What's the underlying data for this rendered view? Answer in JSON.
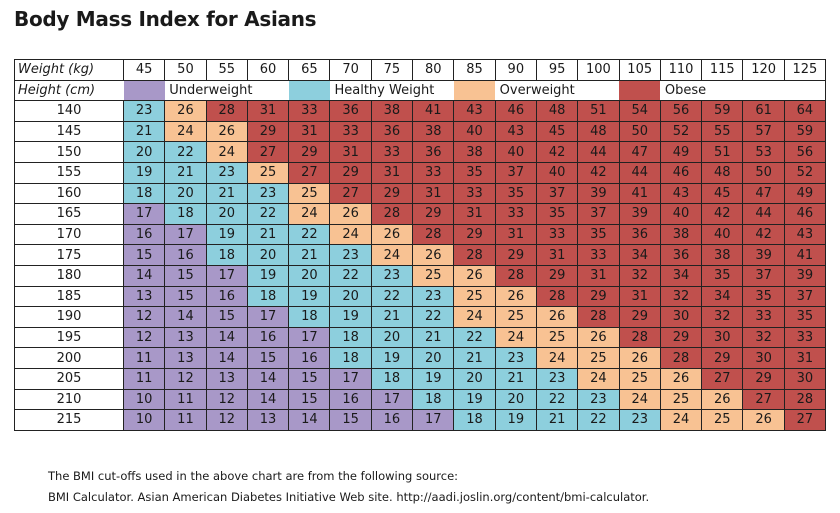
{
  "title": "Body Mass Index for Asians",
  "weight_label": "Weight (kg)",
  "height_label": "Height (cm)",
  "weights": [
    45,
    50,
    55,
    60,
    65,
    70,
    75,
    80,
    85,
    90,
    95,
    100,
    105,
    110,
    115,
    120,
    125
  ],
  "legend": [
    {
      "label": "Underweight",
      "color": "#a898c8",
      "max": 17
    },
    {
      "label": "Healthy Weight",
      "color": "#8dcfdd",
      "max": 23
    },
    {
      "label": "Overweight",
      "color": "#f8c293",
      "max": 26
    },
    {
      "label": "Obese",
      "color": "#c0504d",
      "max": 999
    }
  ],
  "rows": [
    {
      "height": 140,
      "bmi": [
        23,
        26,
        28,
        31,
        33,
        36,
        38,
        41,
        43,
        46,
        48,
        51,
        54,
        56,
        59,
        61,
        64
      ]
    },
    {
      "height": 145,
      "bmi": [
        21,
        24,
        26,
        29,
        31,
        33,
        36,
        38,
        40,
        43,
        45,
        48,
        50,
        52,
        55,
        57,
        59
      ]
    },
    {
      "height": 150,
      "bmi": [
        20,
        22,
        24,
        27,
        29,
        31,
        33,
        36,
        38,
        40,
        42,
        44,
        47,
        49,
        51,
        53,
        56
      ]
    },
    {
      "height": 155,
      "bmi": [
        19,
        21,
        23,
        25,
        27,
        29,
        31,
        33,
        35,
        37,
        40,
        42,
        44,
        46,
        48,
        50,
        52
      ]
    },
    {
      "height": 160,
      "bmi": [
        18,
        20,
        21,
        23,
        25,
        27,
        29,
        31,
        33,
        35,
        37,
        39,
        41,
        43,
        45,
        47,
        49
      ]
    },
    {
      "height": 165,
      "bmi": [
        17,
        18,
        20,
        22,
        24,
        26,
        28,
        29,
        31,
        33,
        35,
        37,
        39,
        40,
        42,
        44,
        46
      ]
    },
    {
      "height": 170,
      "bmi": [
        16,
        17,
        19,
        21,
        22,
        24,
        26,
        28,
        29,
        31,
        33,
        35,
        36,
        38,
        40,
        42,
        43
      ]
    },
    {
      "height": 175,
      "bmi": [
        15,
        16,
        18,
        20,
        21,
        23,
        24,
        26,
        28,
        29,
        31,
        33,
        34,
        36,
        38,
        39,
        41
      ]
    },
    {
      "height": 180,
      "bmi": [
        14,
        15,
        17,
        19,
        20,
        22,
        23,
        25,
        26,
        28,
        29,
        31,
        32,
        34,
        35,
        37,
        39
      ]
    },
    {
      "height": 185,
      "bmi": [
        13,
        15,
        16,
        18,
        19,
        20,
        22,
        23,
        25,
        26,
        28,
        29,
        31,
        32,
        34,
        35,
        37
      ]
    },
    {
      "height": 190,
      "bmi": [
        12,
        14,
        15,
        17,
        18,
        19,
        21,
        22,
        24,
        25,
        26,
        28,
        29,
        30,
        32,
        33,
        35
      ]
    },
    {
      "height": 195,
      "bmi": [
        12,
        13,
        14,
        16,
        17,
        18,
        20,
        21,
        22,
        24,
        25,
        26,
        28,
        29,
        30,
        32,
        33
      ]
    },
    {
      "height": 200,
      "bmi": [
        11,
        13,
        14,
        15,
        16,
        18,
        19,
        20,
        21,
        23,
        24,
        25,
        26,
        28,
        29,
        30,
        31
      ]
    },
    {
      "height": 205,
      "bmi": [
        11,
        12,
        13,
        14,
        15,
        17,
        18,
        19,
        20,
        21,
        23,
        24,
        25,
        26,
        27,
        29,
        30
      ]
    },
    {
      "height": 210,
      "bmi": [
        10,
        11,
        12,
        14,
        15,
        16,
        17,
        18,
        19,
        20,
        22,
        23,
        24,
        25,
        26,
        27,
        28
      ]
    },
    {
      "height": 215,
      "bmi": [
        10,
        11,
        12,
        13,
        14,
        15,
        16,
        17,
        18,
        19,
        21,
        22,
        23,
        24,
        25,
        26,
        27
      ]
    }
  ],
  "footer": {
    "line1": "The BMI cut-offs used in the above chart are from the following source:",
    "line2": "BMI Calculator. Asian American Diabetes Initiative Web site. http://aadi.joslin.org/content/bmi-calculator."
  }
}
